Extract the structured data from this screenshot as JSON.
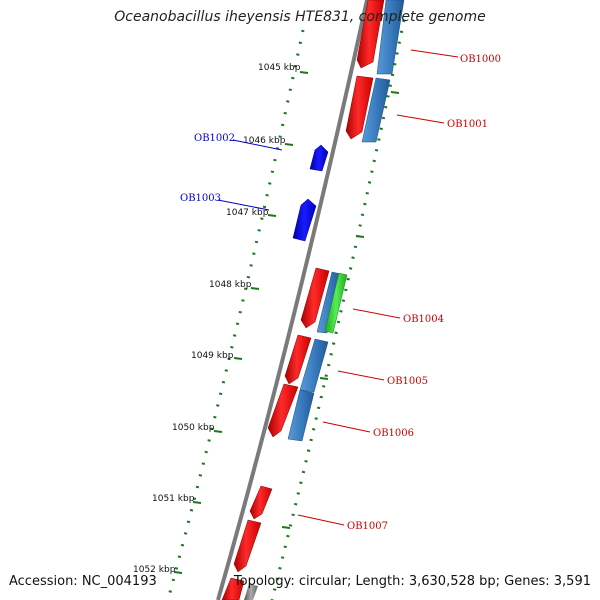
{
  "title": "Oceanobacillus iheyensis HTE831, complete genome",
  "accession": "Accession: NC_004193",
  "topology": "Topology: circular; Length: 3,630,528 bp; Genes: 3,591",
  "colors": {
    "forward_cds": "#ff1010",
    "reverse_cds": "#2a6fb0",
    "rna": "#33cc33",
    "labeled_blue": "#0000ee",
    "label_red": "#cc0000",
    "label_blue": "#0000cc",
    "backbone": "#777777",
    "tick": "#1a7a1a"
  },
  "scale_labels": [
    "1045 kbp",
    "1046 kbp",
    "1047 kbp",
    "1048 kbp",
    "1049 kbp",
    "1050 kbp",
    "1051 kbp",
    "1052 kbp"
  ],
  "gene_labels": {
    "OB1000": "OB1000",
    "OB1001": "OB1001",
    "OB1002": "OB1002",
    "OB1003": "OB1003",
    "OB1004": "OB1004",
    "OB1005": "OB1005",
    "OB1006": "OB1006",
    "OB1007": "OB1007"
  }
}
